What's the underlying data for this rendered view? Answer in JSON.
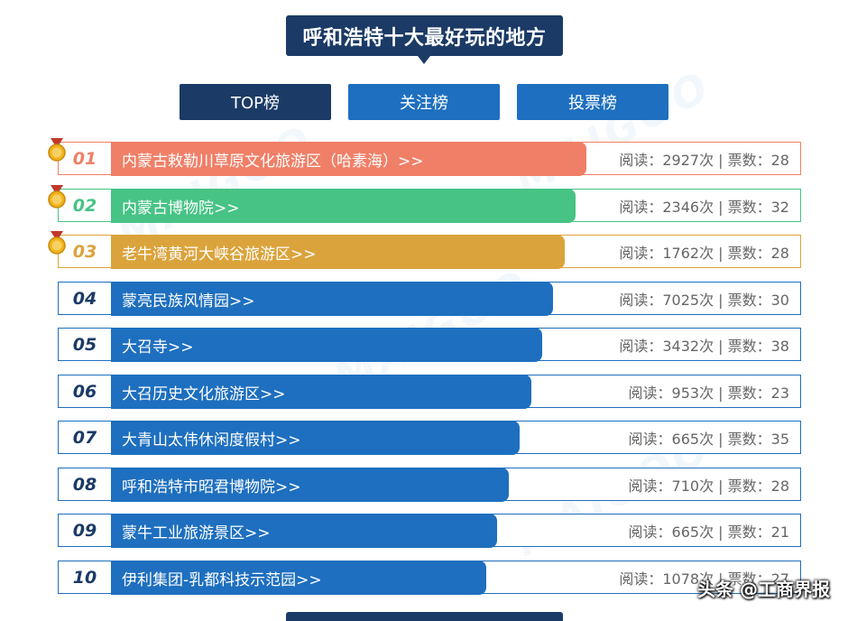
{
  "title": "呼和浩特十大最好玩的地方",
  "tabs": [
    {
      "label": "TOP榜"
    },
    {
      "label": "关注榜"
    },
    {
      "label": "投票榜"
    }
  ],
  "watermark": "MAIGOO",
  "brand": "头条 @工商界报",
  "colors": {
    "row1": "#f07f67",
    "row2": "#46c385",
    "row3": "#dba33b",
    "default": "#1e6fbf",
    "title_bg": "#1b3a66"
  },
  "items": [
    {
      "rank": "01",
      "name": "内蒙古敕勒川草原文化旅游区（哈素海）>>",
      "reads": "2927",
      "votes": "28",
      "stats": "阅读：2927次 | 票数：28",
      "bar_fraction": 0.64
    },
    {
      "rank": "02",
      "name": "内蒙古博物院>>",
      "reads": "2346",
      "votes": "32",
      "stats": "阅读：2346次 | 票数：32",
      "bar_fraction": 0.625
    },
    {
      "rank": "03",
      "name": "老牛湾黄河大峡谷旅游区>>",
      "reads": "1762",
      "votes": "28",
      "stats": "阅读：1762次 | 票数：28",
      "bar_fraction": 0.61
    },
    {
      "rank": "04",
      "name": "蒙亮民族风情园>>",
      "reads": "7025",
      "votes": "30",
      "stats": "阅读：7025次 | 票数：30",
      "bar_fraction": 0.595
    },
    {
      "rank": "05",
      "name": "大召寺>>",
      "reads": "3432",
      "votes": "38",
      "stats": "阅读：3432次 | 票数：38",
      "bar_fraction": 0.58
    },
    {
      "rank": "06",
      "name": "大召历史文化旅游区>>",
      "reads": "953",
      "votes": "23",
      "stats": "阅读：953次 | 票数：23",
      "bar_fraction": 0.565
    },
    {
      "rank": "07",
      "name": "大青山太伟休闲度假村>>",
      "reads": "665",
      "votes": "35",
      "stats": "阅读：665次 | 票数：35",
      "bar_fraction": 0.55
    },
    {
      "rank": "08",
      "name": "呼和浩特市昭君博物院>>",
      "reads": "710",
      "votes": "28",
      "stats": "阅读：710次 | 票数：28",
      "bar_fraction": 0.535
    },
    {
      "rank": "09",
      "name": "蒙牛工业旅游景区>>",
      "reads": "665",
      "votes": "21",
      "stats": "阅读：665次 | 票数：21",
      "bar_fraction": 0.52
    },
    {
      "rank": "10",
      "name": "伊利集团-乳都科技示范园>>",
      "reads": "1078",
      "votes": "27",
      "stats": "阅读：1078次 | 票数：27",
      "bar_fraction": 0.505
    }
  ]
}
